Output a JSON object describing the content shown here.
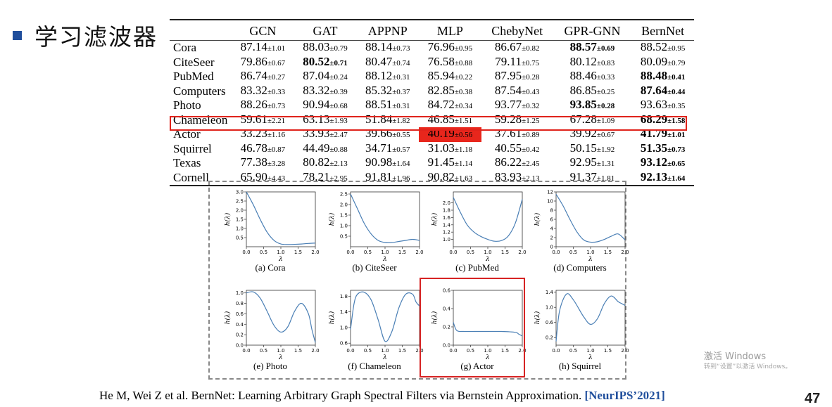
{
  "slide": {
    "title": "学习滤波器",
    "page_number": "47"
  },
  "table": {
    "columns": [
      "GCN",
      "GAT",
      "APPNP",
      "MLP",
      "ChebyNet",
      "GPR-GNN",
      "BernNet"
    ],
    "rows": [
      {
        "dataset": "Cora",
        "cells": [
          {
            "m": "87.14",
            "s": "±1.01"
          },
          {
            "m": "88.03",
            "s": "±0.79"
          },
          {
            "m": "88.14",
            "s": "±0.73"
          },
          {
            "m": "76.96",
            "s": "±0.95"
          },
          {
            "m": "86.67",
            "s": "±0.82"
          },
          {
            "m": "88.57",
            "s": "±0.69",
            "best": true
          },
          {
            "m": "88.52",
            "s": "±0.95"
          }
        ]
      },
      {
        "dataset": "CiteSeer",
        "cells": [
          {
            "m": "79.86",
            "s": "±0.67"
          },
          {
            "m": "80.52",
            "s": "±0.71",
            "best": true
          },
          {
            "m": "80.47",
            "s": "±0.74"
          },
          {
            "m": "76.58",
            "s": "±0.88"
          },
          {
            "m": "79.11",
            "s": "±0.75"
          },
          {
            "m": "80.12",
            "s": "±0.83"
          },
          {
            "m": "80.09",
            "s": "±0.79"
          }
        ]
      },
      {
        "dataset": "PubMed",
        "cells": [
          {
            "m": "86.74",
            "s": "±0.27"
          },
          {
            "m": "87.04",
            "s": "±0.24"
          },
          {
            "m": "88.12",
            "s": "±0.31"
          },
          {
            "m": "85.94",
            "s": "±0.22"
          },
          {
            "m": "87.95",
            "s": "±0.28"
          },
          {
            "m": "88.46",
            "s": "±0.33"
          },
          {
            "m": "88.48",
            "s": "±0.41",
            "best": true
          }
        ]
      },
      {
        "dataset": "Computers",
        "cells": [
          {
            "m": "83.32",
            "s": "±0.33"
          },
          {
            "m": "83.32",
            "s": "±0.39"
          },
          {
            "m": "85.32",
            "s": "±0.37"
          },
          {
            "m": "82.85",
            "s": "±0.38"
          },
          {
            "m": "87.54",
            "s": "±0.43"
          },
          {
            "m": "86.85",
            "s": "±0.25"
          },
          {
            "m": "87.64",
            "s": "±0.44",
            "best": true
          }
        ]
      },
      {
        "dataset": "Photo",
        "cells": [
          {
            "m": "88.26",
            "s": "±0.73"
          },
          {
            "m": "90.94",
            "s": "±0.68"
          },
          {
            "m": "88.51",
            "s": "±0.31"
          },
          {
            "m": "84.72",
            "s": "±0.34"
          },
          {
            "m": "93.77",
            "s": "±0.32"
          },
          {
            "m": "93.85",
            "s": "±0.28",
            "best": true
          },
          {
            "m": "93.63",
            "s": "±0.35"
          }
        ]
      },
      {
        "dataset": "Chameleon",
        "cells": [
          {
            "m": "59.61",
            "s": "±2.21"
          },
          {
            "m": "63.13",
            "s": "±1.93"
          },
          {
            "m": "51.84",
            "s": "±1.82"
          },
          {
            "m": "46.85",
            "s": "±1.51"
          },
          {
            "m": "59.28",
            "s": "±1.25"
          },
          {
            "m": "67.28",
            "s": "±1.09"
          },
          {
            "m": "68.29",
            "s": "±1.58",
            "best": true
          }
        ]
      },
      {
        "dataset": "Actor",
        "cells": [
          {
            "m": "33.23",
            "s": "±1.16"
          },
          {
            "m": "33.93",
            "s": "±2.47"
          },
          {
            "m": "39.66",
            "s": "±0.55"
          },
          {
            "m": "40.19",
            "s": "±0.56",
            "highlight": true
          },
          {
            "m": "37.61",
            "s": "±0.89"
          },
          {
            "m": "39.92",
            "s": "±0.67"
          },
          {
            "m": "41.79",
            "s": "±1.01",
            "best": true
          }
        ]
      },
      {
        "dataset": "Squirrel",
        "cells": [
          {
            "m": "46.78",
            "s": "±0.87"
          },
          {
            "m": "44.49",
            "s": "±0.88"
          },
          {
            "m": "34.71",
            "s": "±0.57"
          },
          {
            "m": "31.03",
            "s": "±1.18"
          },
          {
            "m": "40.55",
            "s": "±0.42"
          },
          {
            "m": "50.15",
            "s": "±1.92"
          },
          {
            "m": "51.35",
            "s": "±0.73",
            "best": true
          }
        ]
      },
      {
        "dataset": "Texas",
        "cells": [
          {
            "m": "77.38",
            "s": "±3.28"
          },
          {
            "m": "80.82",
            "s": "±2.13"
          },
          {
            "m": "90.98",
            "s": "±1.64"
          },
          {
            "m": "91.45",
            "s": "±1.14"
          },
          {
            "m": "86.22",
            "s": "±2.45"
          },
          {
            "m": "92.95",
            "s": "±1.31"
          },
          {
            "m": "93.12",
            "s": "±0.65",
            "best": true
          }
        ]
      },
      {
        "dataset": "Cornell",
        "cells": [
          {
            "m": "65.90",
            "s": "±4.43"
          },
          {
            "m": "78.21",
            "s": "±2.95"
          },
          {
            "m": "91.81",
            "s": "±1.96"
          },
          {
            "m": "90.82",
            "s": "±1.63"
          },
          {
            "m": "83.93",
            "s": "±2.13"
          },
          {
            "m": "91.37",
            "s": "±1.81"
          },
          {
            "m": "92.13",
            "s": "±1.64",
            "best": true
          }
        ]
      }
    ]
  },
  "chart_data": [
    {
      "type": "line",
      "caption": "(a) Cora",
      "xlabel": "λ",
      "ylabel": "h(λ)",
      "xlim": [
        0,
        2
      ],
      "ylim": [
        0,
        3
      ],
      "xticks": [
        "0.0",
        "0.5",
        "1.0",
        "1.5",
        "2.0"
      ],
      "yticks": [
        "0.5",
        "1.0",
        "1.5",
        "2.0",
        "2.5",
        "3.0"
      ],
      "x": [
        0,
        0.2,
        0.4,
        0.6,
        0.8,
        1.0,
        1.2,
        1.4,
        1.6,
        1.8,
        2.0
      ],
      "y": [
        3.0,
        2.3,
        1.5,
        0.8,
        0.35,
        0.15,
        0.12,
        0.13,
        0.15,
        0.18,
        0.2
      ]
    },
    {
      "type": "line",
      "caption": "(b) CiteSeer",
      "xlabel": "λ",
      "ylabel": "h(λ)",
      "xlim": [
        0,
        2
      ],
      "ylim": [
        0,
        2.6
      ],
      "xticks": [
        "0.0",
        "0.5",
        "1.0",
        "1.5",
        "2.0"
      ],
      "yticks": [
        "0.5",
        "1.0",
        "1.5",
        "2.0",
        "2.5"
      ],
      "x": [
        0,
        0.2,
        0.4,
        0.6,
        0.8,
        1.0,
        1.2,
        1.4,
        1.6,
        1.8,
        2.0
      ],
      "y": [
        2.5,
        1.8,
        1.1,
        0.6,
        0.3,
        0.2,
        0.2,
        0.25,
        0.3,
        0.35,
        0.3
      ]
    },
    {
      "type": "line",
      "caption": "(c) PubMed",
      "xlabel": "λ",
      "ylabel": "h(λ)",
      "xlim": [
        0,
        2
      ],
      "ylim": [
        0.8,
        2.3
      ],
      "xticks": [
        "0.0",
        "0.5",
        "1.0",
        "1.5",
        "2.0"
      ],
      "yticks": [
        "1.0",
        "1.2",
        "1.4",
        "1.6",
        "1.8",
        "2.0"
      ],
      "x": [
        0,
        0.2,
        0.4,
        0.6,
        0.8,
        1.0,
        1.2,
        1.4,
        1.6,
        1.8,
        2.0
      ],
      "y": [
        2.15,
        1.75,
        1.4,
        1.2,
        1.08,
        1.0,
        0.95,
        0.97,
        1.1,
        1.45,
        2.1
      ]
    },
    {
      "type": "line",
      "caption": "(d) Computers",
      "xlabel": "λ",
      "ylabel": "h(λ)",
      "xlim": [
        0,
        2
      ],
      "ylim": [
        0,
        12
      ],
      "xticks": [
        "0.0",
        "0.5",
        "1.0",
        "1.5",
        "2.0"
      ],
      "yticks": [
        "0",
        "2",
        "4",
        "6",
        "8",
        "10",
        "12"
      ],
      "x": [
        0,
        0.2,
        0.4,
        0.6,
        0.8,
        1.0,
        1.2,
        1.4,
        1.6,
        1.8,
        2.0
      ],
      "y": [
        11.5,
        9.0,
        6.0,
        3.3,
        1.5,
        1.0,
        1.1,
        1.6,
        2.3,
        2.8,
        1.5
      ]
    },
    {
      "type": "line",
      "caption": "(e) Photo",
      "xlabel": "λ",
      "ylabel": "h(λ)",
      "xlim": [
        0,
        2
      ],
      "ylim": [
        0,
        1.05
      ],
      "xticks": [
        "0.0",
        "0.5",
        "1.0",
        "1.5",
        "2.0"
      ],
      "yticks": [
        "0.0",
        "0.2",
        "0.4",
        "0.6",
        "0.8",
        "1.0"
      ],
      "x": [
        0,
        0.2,
        0.4,
        0.6,
        0.8,
        1.0,
        1.2,
        1.4,
        1.6,
        1.8,
        1.9,
        2.0
      ],
      "y": [
        1.0,
        1.02,
        0.9,
        0.65,
        0.38,
        0.25,
        0.35,
        0.65,
        0.8,
        0.6,
        0.3,
        0.05
      ]
    },
    {
      "type": "line",
      "caption": "(f) Chameleon",
      "xlabel": "λ",
      "ylabel": "h(λ)",
      "xlim": [
        0,
        2
      ],
      "ylim": [
        0.55,
        1.95
      ],
      "xticks": [
        "0.0",
        "0.5",
        "1.0",
        "1.5",
        "2.0"
      ],
      "yticks": [
        "0.6",
        "1.0",
        "1.4",
        "1.8"
      ],
      "x": [
        0,
        0.1,
        0.2,
        0.4,
        0.6,
        0.8,
        1.0,
        1.2,
        1.4,
        1.6,
        1.8,
        1.9,
        2.0
      ],
      "y": [
        0.95,
        1.6,
        1.85,
        1.9,
        1.7,
        1.2,
        0.65,
        0.9,
        1.5,
        1.85,
        1.85,
        1.65,
        1.55
      ]
    },
    {
      "type": "line",
      "caption": "(g) Actor",
      "xlabel": "λ",
      "ylabel": "h(λ)",
      "xlim": [
        0,
        2
      ],
      "ylim": [
        0,
        0.6
      ],
      "xticks": [
        "0.0",
        "0.5",
        "1.0",
        "1.5",
        "2.0"
      ],
      "yticks": [
        "0.0",
        "0.2",
        "0.4",
        "0.6"
      ],
      "x": [
        0,
        0.1,
        0.3,
        0.6,
        1.0,
        1.4,
        1.8,
        1.9,
        2.0
      ],
      "y": [
        0.25,
        0.16,
        0.15,
        0.15,
        0.15,
        0.15,
        0.14,
        0.12,
        0.1
      ]
    },
    {
      "type": "line",
      "caption": "(h) Squirrel",
      "xlabel": "λ",
      "ylabel": "h(λ)",
      "xlim": [
        0,
        2
      ],
      "ylim": [
        0,
        1.45
      ],
      "xticks": [
        "0.0",
        "0.5",
        "1.0",
        "1.5",
        "2.0"
      ],
      "yticks": [
        "0.2",
        "0.6",
        "1.0",
        "1.4"
      ],
      "x": [
        0,
        0.1,
        0.3,
        0.5,
        0.8,
        1.0,
        1.2,
        1.4,
        1.6,
        1.8,
        1.9,
        2.0
      ],
      "y": [
        0.1,
        0.9,
        1.35,
        1.2,
        0.75,
        0.55,
        0.7,
        1.1,
        1.3,
        1.15,
        1.1,
        1.05
      ]
    }
  ],
  "citation": {
    "text": "He M, Wei Z et al. BernNet: Learning Arbitrary Graph Spectral Filters via Bernstein Approximation. ",
    "venue": "[NeurIPS’2021]"
  },
  "watermark": {
    "line1": "激活 Windows",
    "line2": "转到“设置”以激活 Windows。"
  }
}
